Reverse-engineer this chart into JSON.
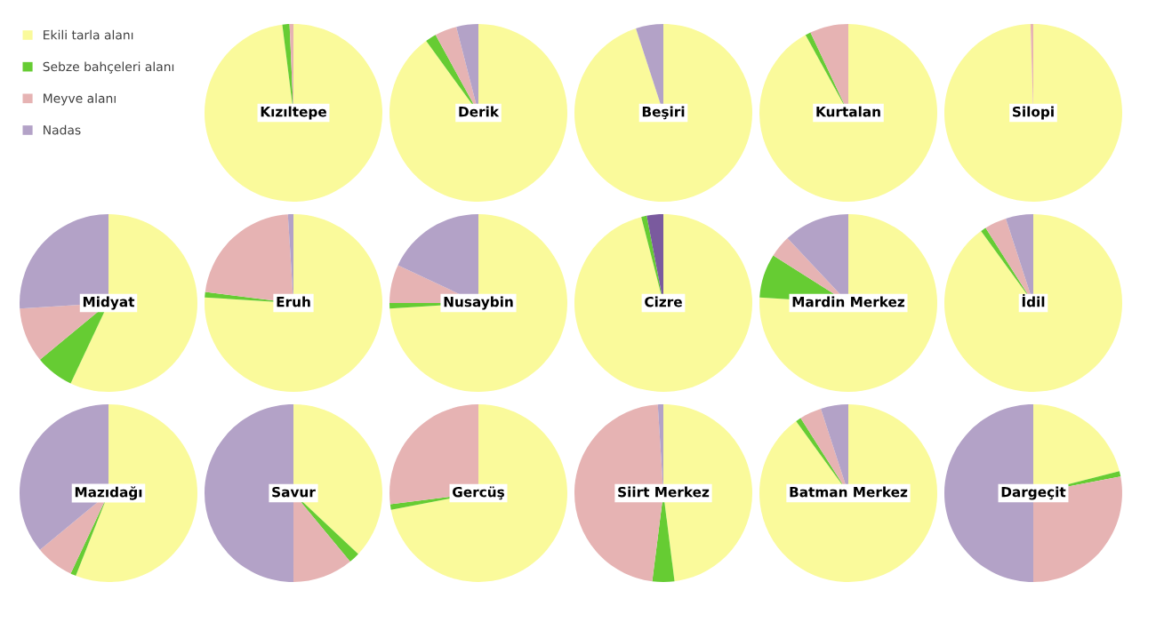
{
  "chart_data": [
    {
      "type": "pie",
      "title": "Kızıltepe",
      "legend": "top left",
      "categories": [
        "Ekili tarla alanı",
        "Sebze bahçeleri alanı",
        "Meyve alanı",
        "Nadas"
      ],
      "values": [
        98,
        1.3,
        0.7,
        0
      ],
      "colors": [
        "#fafa9b",
        "#66cc33",
        "#e6b3b3",
        "#b3a2c7"
      ]
    },
    {
      "type": "pie",
      "title": "Derik",
      "categories": [
        null,
        null,
        null,
        null
      ],
      "values": [
        90,
        2,
        4,
        4
      ],
      "colors": [
        "#fafa9b",
        "#66cc33",
        "#e6b3b3",
        "#b3a2c7"
      ]
    },
    {
      "type": "pie",
      "title": "Beşiri",
      "categories": [
        null,
        null,
        null,
        null
      ],
      "values": [
        95,
        0,
        0,
        5
      ],
      "colors": [
        "#fafa9b",
        "#66cc33",
        "#e6b3b3",
        "#b3a2c7"
      ]
    },
    {
      "type": "pie",
      "title": "Kurtalan",
      "categories": [
        null,
        null,
        null,
        null
      ],
      "values": [
        92,
        1,
        7,
        0
      ],
      "colors": [
        "#fafa9b",
        "#66cc33",
        "#e6b3b3",
        "#b3a2c7"
      ]
    },
    {
      "type": "pie",
      "title": "Silopi",
      "categories": [
        null,
        null,
        null,
        null
      ],
      "values": [
        99.5,
        0,
        0.5,
        0
      ],
      "colors": [
        "#fafa9b",
        "#66cc33",
        "#e6b3b3",
        "#b3a2c7"
      ]
    },
    {
      "type": "pie",
      "title": "Midyat",
      "categories": [
        null,
        null,
        null,
        null
      ],
      "values": [
        57,
        7,
        10,
        26
      ],
      "colors": [
        "#fafa9b",
        "#66cc33",
        "#e6b3b3",
        "#b3a2c7"
      ]
    },
    {
      "type": "pie",
      "title": "Eruh",
      "categories": [
        null,
        null,
        null,
        null
      ],
      "values": [
        76,
        1,
        22,
        1
      ],
      "colors": [
        "#fafa9b",
        "#66cc33",
        "#e6b3b3",
        "#b3a2c7"
      ]
    },
    {
      "type": "pie",
      "title": "Nusaybin",
      "categories": [
        null,
        null,
        null,
        null
      ],
      "values": [
        74,
        1,
        7,
        18
      ],
      "colors": [
        "#fafa9b",
        "#66cc33",
        "#e6b3b3",
        "#b3a2c7"
      ]
    },
    {
      "type": "pie",
      "title": "Cizre",
      "categories": [
        null,
        null,
        null,
        null
      ],
      "values": [
        96,
        1,
        0,
        3
      ],
      "colors": [
        "#fafa9b",
        "#66cc33",
        "#e6b3b3",
        "#7a5a9e"
      ]
    },
    {
      "type": "pie",
      "title": "Mardin Merkez",
      "categories": [
        null,
        null,
        null,
        null
      ],
      "values": [
        76,
        8,
        4,
        12
      ],
      "colors": [
        "#fafa9b",
        "#66cc33",
        "#e6b3b3",
        "#b3a2c7"
      ]
    },
    {
      "type": "pie",
      "title": "İdil",
      "categories": [
        null,
        null,
        null,
        null
      ],
      "values": [
        90,
        1,
        4,
        5
      ],
      "colors": [
        "#fafa9b",
        "#66cc33",
        "#e6b3b3",
        "#b3a2c7"
      ]
    },
    {
      "type": "pie",
      "title": "Mazıdağı",
      "categories": [
        null,
        null,
        null,
        null
      ],
      "values": [
        56,
        1,
        7,
        36
      ],
      "colors": [
        "#fafa9b",
        "#66cc33",
        "#e6b3b3",
        "#b3a2c7"
      ]
    },
    {
      "type": "pie",
      "title": "Savur",
      "categories": [
        null,
        null,
        null,
        null
      ],
      "values": [
        37,
        2,
        11,
        50
      ],
      "colors": [
        "#fafa9b",
        "#66cc33",
        "#e6b3b3",
        "#b3a2c7"
      ]
    },
    {
      "type": "pie",
      "title": "Gercüş",
      "categories": [
        null,
        null,
        null,
        null
      ],
      "values": [
        72,
        1,
        27,
        0
      ],
      "colors": [
        "#fafa9b",
        "#66cc33",
        "#e6b3b3",
        "#b3a2c7"
      ]
    },
    {
      "type": "pie",
      "title": "Siirt Merkez",
      "categories": [
        null,
        null,
        null,
        null
      ],
      "values": [
        48,
        4,
        47,
        1
      ],
      "colors": [
        "#fafa9b",
        "#66cc33",
        "#e6b3b3",
        "#b3a2c7"
      ]
    },
    {
      "type": "pie",
      "title": "Batman Merkez",
      "categories": [
        null,
        null,
        null,
        null
      ],
      "values": [
        90,
        1,
        4,
        5
      ],
      "colors": [
        "#fafa9b",
        "#66cc33",
        "#e6b3b3",
        "#b3a2c7"
      ]
    },
    {
      "type": "pie",
      "title": "Dargeçit",
      "categories": [
        null,
        null,
        null,
        null
      ],
      "values": [
        21,
        1,
        28,
        50
      ],
      "colors": [
        "#fafa9b",
        "#66cc33",
        "#e6b3b3",
        "#b3a2c7"
      ]
    }
  ]
}
